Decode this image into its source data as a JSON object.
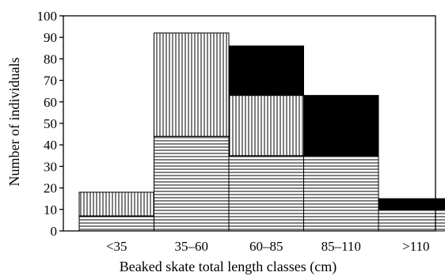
{
  "chart_data": {
    "type": "bar",
    "stacked": true,
    "xlabel": "Beaked skate total length classes (cm)",
    "ylabel": "Number of individuals",
    "ylim": [
      0,
      100
    ],
    "yticks": [
      0,
      10,
      20,
      30,
      40,
      50,
      60,
      70,
      80,
      90,
      100
    ],
    "categories": [
      "<35",
      "35–60",
      "60–85",
      "85–110",
      ">110"
    ],
    "series": [
      {
        "pattern": "horizontal-lines",
        "color": "#000000",
        "values": [
          7,
          44,
          35,
          35,
          10
        ]
      },
      {
        "pattern": "vertical-lines",
        "color": "#000000",
        "values": [
          11,
          48,
          28,
          0,
          0
        ]
      },
      {
        "pattern": "solid",
        "color": "#000000",
        "values": [
          0,
          0,
          23,
          28,
          5
        ]
      }
    ],
    "grid": false,
    "legend": "none"
  }
}
